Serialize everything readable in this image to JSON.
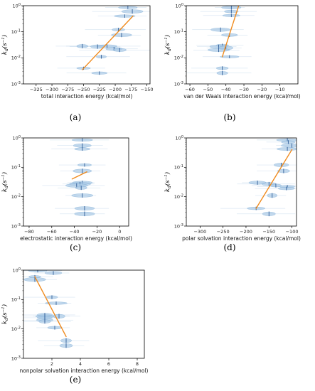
{
  "colors": {
    "violin": "#a9c9e6",
    "violin_edge": "#6fa3d0",
    "median": "#1f4e8c",
    "fit": "#f08a1c",
    "axis": "#000000"
  },
  "ylabel": "k_d(s^-1)",
  "ytick_labels": [
    "10^0",
    "10^-1",
    "10^-2",
    "10^-3"
  ],
  "chart_data": [
    {
      "id": "a",
      "type": "scatter",
      "caption": "(a)",
      "xlabel": "total interaction energy (kcal/mol)",
      "xlim": [
        -345,
        -145
      ],
      "ylim_log10": [
        -3,
        0
      ],
      "yscale": "log",
      "xticks": [
        -325,
        -300,
        -275,
        -250,
        -225,
        -200,
        -175,
        -150
      ],
      "xtick_labels": [
        "−325",
        "−300",
        "−275",
        "−250",
        "−225",
        "−200",
        "−175",
        "−150"
      ],
      "points": [
        [
          -180,
          0.85
        ],
        [
          -173,
          0.6
        ],
        [
          -185,
          0.4
        ],
        [
          -195,
          0.12
        ],
        [
          -190,
          0.075
        ],
        [
          -213,
          0.028
        ],
        [
          -228,
          0.027
        ],
        [
          -252,
          0.028
        ],
        [
          -202,
          0.022
        ],
        [
          -193,
          0.02
        ],
        [
          -222,
          0.011
        ],
        [
          -250,
          0.004
        ],
        [
          -225,
          0.0026
        ]
      ],
      "fit": [
        [
          -252,
          0.0035
        ],
        [
          -172,
          0.4
        ]
      ]
    },
    {
      "id": "b",
      "type": "scatter",
      "caption": "(b)",
      "xlabel": "van der Waals interaction energy (kcal/mol)",
      "xlim": [
        -62,
        0
      ],
      "ylim_log10": [
        -3,
        0
      ],
      "yscale": "log",
      "xticks": [
        -60,
        -50,
        -40,
        -30,
        -20,
        -10
      ],
      "xtick_labels": [
        "−60",
        "−50",
        "−40",
        "−30",
        "−20",
        "−10"
      ],
      "points": [
        [
          -37,
          0.85
        ],
        [
          -37,
          0.6
        ],
        [
          -37,
          0.42
        ],
        [
          -43,
          0.12
        ],
        [
          -38,
          0.075
        ],
        [
          -42,
          0.03
        ],
        [
          -44,
          0.027
        ],
        [
          -40,
          0.024
        ],
        [
          -44,
          0.02
        ],
        [
          -38,
          0.011
        ],
        [
          -42,
          0.004
        ],
        [
          -42,
          0.0026
        ]
      ],
      "fit": [
        [
          -42,
          0.011
        ],
        [
          -33,
          0.95
        ]
      ]
    },
    {
      "id": "c",
      "type": "scatter",
      "caption": "(c)",
      "xlabel": "electrostatic interaction energy (kcal/mol)",
      "xlim": [
        -85,
        8
      ],
      "ylim_log10": [
        -3,
        0
      ],
      "yscale": "log",
      "xticks": [
        -80,
        -60,
        -40,
        -20,
        0
      ],
      "xtick_labels": [
        "−80",
        "−60",
        "−40",
        "−20",
        "0"
      ],
      "points": [
        [
          -33,
          0.85
        ],
        [
          -33,
          0.55
        ],
        [
          -33,
          0.42
        ],
        [
          -31,
          0.12
        ],
        [
          -33,
          0.075
        ],
        [
          -33,
          0.03
        ],
        [
          -35,
          0.027
        ],
        [
          -38,
          0.024
        ],
        [
          -34,
          0.02
        ],
        [
          -33,
          0.011
        ],
        [
          -31,
          0.004
        ],
        [
          -31,
          0.0026
        ]
      ],
      "fit": [
        [
          -42,
          0.04
        ],
        [
          -29,
          0.07
        ]
      ]
    },
    {
      "id": "d",
      "type": "scatter",
      "caption": "(d)",
      "xlabel": "polar solvation interaction energy (kcal/mol)",
      "xlim": [
        -330,
        -90
      ],
      "ylim_log10": [
        -3,
        0
      ],
      "yscale": "log",
      "xticks": [
        -300,
        -250,
        -200,
        -150,
        -100
      ],
      "xtick_labels": [
        "−300",
        "−250",
        "−200",
        "−150",
        "−100"
      ],
      "points": [
        [
          -110,
          0.85
        ],
        [
          -108,
          0.72
        ],
        [
          -100,
          0.55
        ],
        [
          -110,
          0.42
        ],
        [
          -123,
          0.12
        ],
        [
          -118,
          0.075
        ],
        [
          -175,
          0.03
        ],
        [
          -150,
          0.027
        ],
        [
          -135,
          0.024
        ],
        [
          -110,
          0.022
        ],
        [
          -112,
          0.019
        ],
        [
          -143,
          0.011
        ],
        [
          -178,
          0.004
        ],
        [
          -150,
          0.0026
        ]
      ],
      "fit": [
        [
          -178,
          0.004
        ],
        [
          -100,
          0.4
        ]
      ]
    },
    {
      "id": "e",
      "type": "scatter",
      "caption": "(e)",
      "xlabel": "nonpolar solvation interaction energy (kcal/mol)",
      "xlim": [
        0,
        8.5
      ],
      "ylim_log10": [
        -3,
        0
      ],
      "yscale": "log",
      "xticks": [
        2,
        4,
        6,
        8
      ],
      "xtick_labels": [
        "2",
        "4",
        "6",
        "8"
      ],
      "points": [
        [
          1,
          0.95
        ],
        [
          2.1,
          0.8
        ],
        [
          0.8,
          0.6
        ],
        [
          0.8,
          0.48
        ],
        [
          2,
          0.12
        ],
        [
          2.3,
          0.075
        ],
        [
          1.5,
          0.03
        ],
        [
          1.5,
          0.027
        ],
        [
          2.5,
          0.027
        ],
        [
          1.5,
          0.024
        ],
        [
          1.5,
          0.02
        ],
        [
          1.5,
          0.018
        ],
        [
          2.2,
          0.011
        ],
        [
          3,
          0.004
        ],
        [
          3,
          0.0027
        ]
      ],
      "fit": [
        [
          0.8,
          0.6
        ],
        [
          3,
          0.0055
        ]
      ]
    }
  ]
}
